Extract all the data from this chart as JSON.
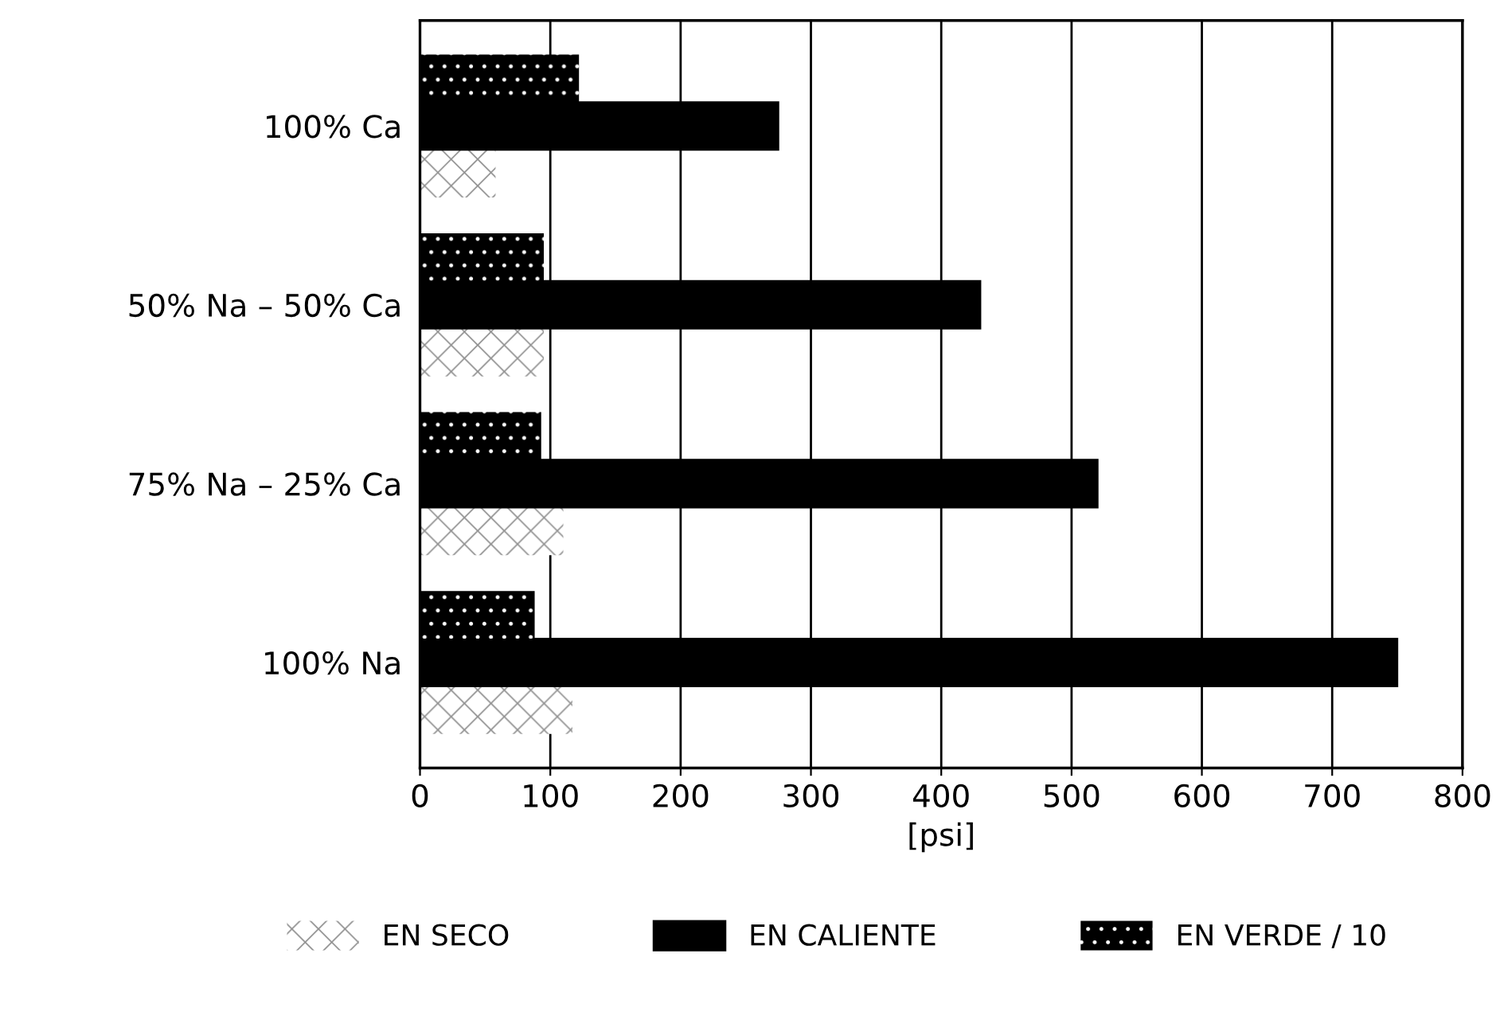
{
  "chart_data": {
    "type": "bar",
    "orientation": "horizontal",
    "xlabel": "[psi]",
    "categories": [
      "100% Ca",
      "50% Na – 50% Ca",
      "75% Na – 25% Ca",
      "100% Na"
    ],
    "series": [
      {
        "name": "EN SECO",
        "color": "#ffffff",
        "values": [
          58,
          95,
          110,
          117
        ]
      },
      {
        "name": "EN CALIENTE",
        "color": "#000000",
        "values": [
          275,
          430,
          520,
          750
        ]
      },
      {
        "name": "EN VERDE / 10",
        "color": "#000000",
        "values": [
          122,
          95,
          93,
          88
        ]
      }
    ],
    "xlim": [
      0,
      800
    ],
    "xticks": [
      0,
      100,
      200,
      300,
      400,
      500,
      600,
      700,
      800
    ],
    "grid": "x",
    "legend": "bottom"
  }
}
